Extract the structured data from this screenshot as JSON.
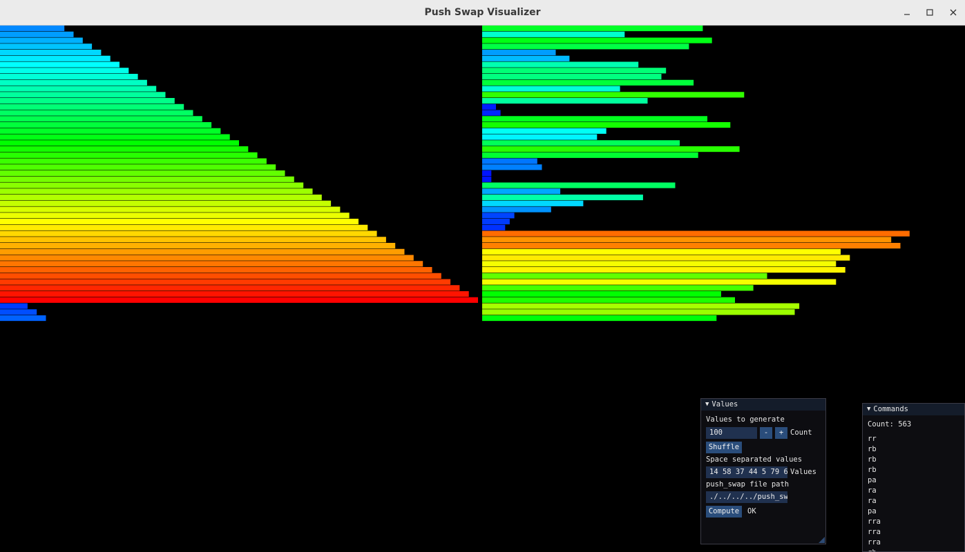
{
  "window": {
    "title": "Push Swap Visualizer",
    "min_icon": "minimize-icon",
    "max_icon": "maximize-icon",
    "close_icon": "close-icon"
  },
  "visualization": {
    "stack_a_values": [
      14,
      16,
      18,
      20,
      22,
      24,
      26,
      28,
      30,
      32,
      34,
      36,
      38,
      40,
      42,
      44,
      46,
      48,
      50,
      52,
      54,
      56,
      58,
      60,
      62,
      64,
      66,
      68,
      70,
      72,
      74,
      76,
      78,
      80,
      82,
      84,
      86,
      88,
      90,
      92,
      94,
      96,
      98,
      100,
      102,
      104,
      6,
      8,
      10
    ],
    "stack_b_values": [
      48,
      31,
      50,
      45,
      16,
      19,
      34,
      40,
      39,
      46,
      30,
      57,
      36,
      3,
      4,
      49,
      54,
      27,
      25,
      43,
      56,
      47,
      12,
      13,
      2,
      2,
      42,
      17,
      35,
      22,
      15,
      7,
      6,
      5,
      93,
      89,
      91,
      78,
      80,
      77,
      79,
      62,
      77,
      59,
      52,
      55,
      69,
      68,
      51
    ],
    "max_value": 104,
    "colors": {
      "background": "#000000"
    }
  },
  "values_panel": {
    "title": "Values",
    "generate_label": "Values to generate",
    "count_value": "100",
    "minus_label": "-",
    "plus_label": "+",
    "count_label": "Count",
    "shuffle_label": "Shuffle",
    "space_label": "Space separated values",
    "values_input": "14 58 37 44 5 79 6",
    "values_label": "Values",
    "path_label": "push_swap file path",
    "path_input": "./../../../push_sw",
    "compute_label": "Compute",
    "status": "OK"
  },
  "commands_panel": {
    "title": "Commands",
    "count_text": "Count: 563",
    "commands": [
      "rr",
      "rb",
      "rb",
      "rb",
      "pa",
      "ra",
      "ra",
      "pa",
      "rra",
      "rra",
      "rra",
      "rb"
    ]
  }
}
